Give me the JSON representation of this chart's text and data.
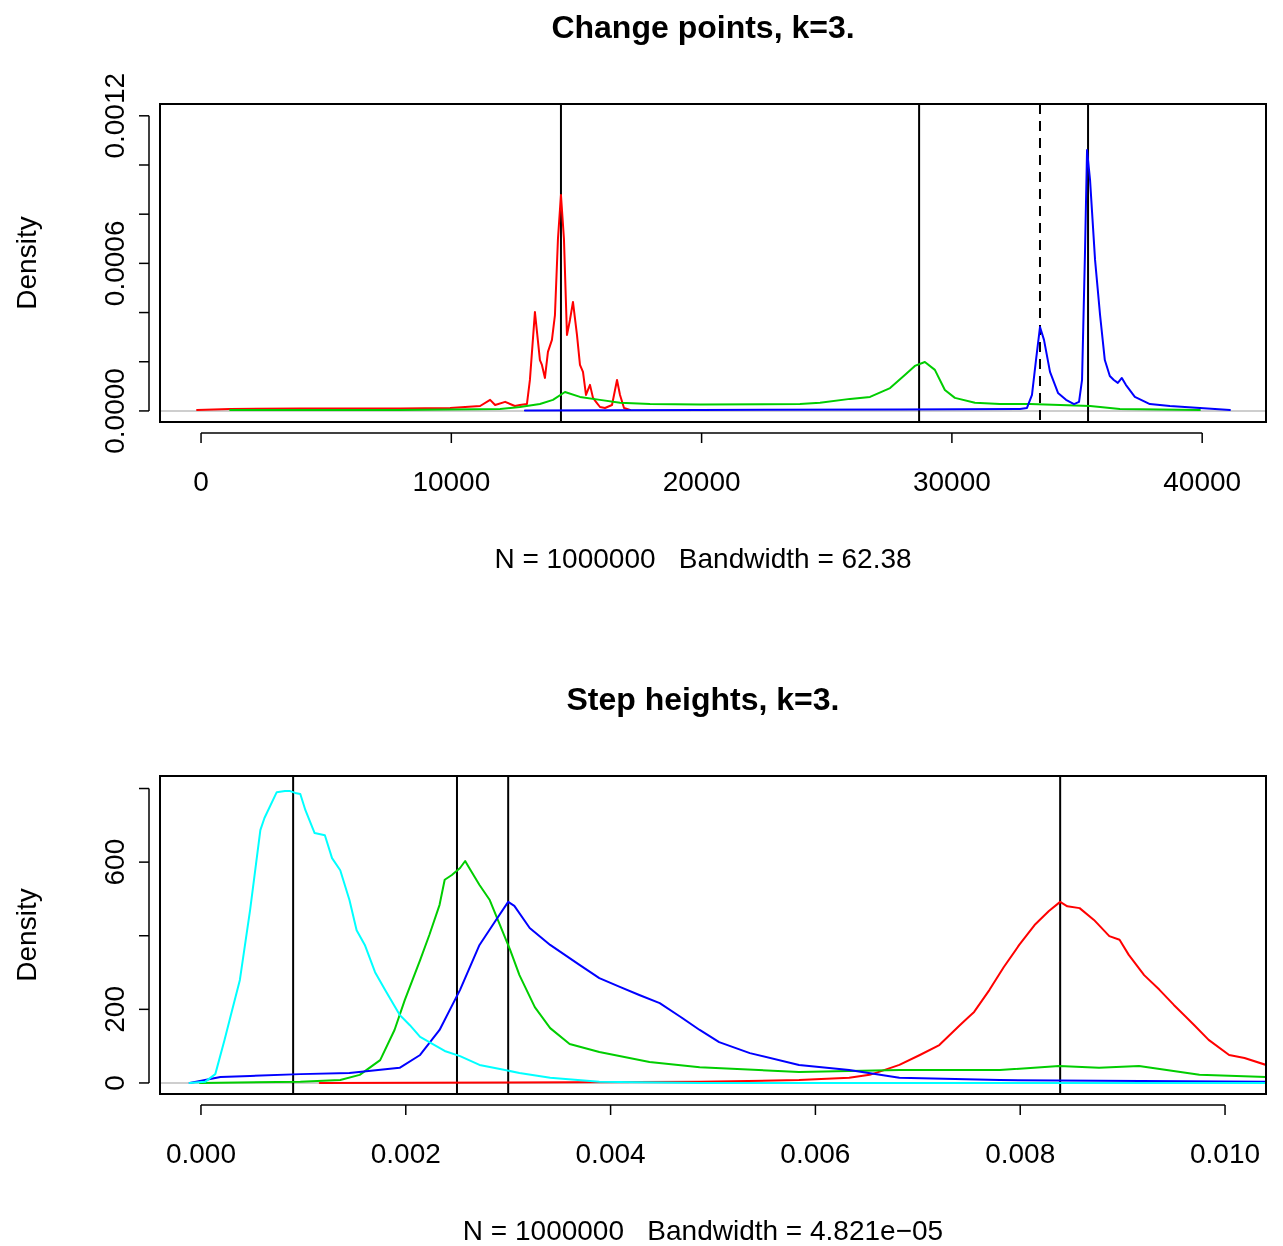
{
  "chart_data": [
    {
      "type": "line",
      "title": "Change points, k=3.",
      "xlabel": "N = 1000000   Bandwidth = 62.38",
      "ylabel": "Density",
      "xlim": [
        -1640,
        42550
      ],
      "ylim": [
        -4.5e-05,
        0.001248
      ],
      "xticks": [
        0,
        10000,
        20000,
        30000,
        40000
      ],
      "yticks": [
        {
          "value": 0,
          "label": "0.0000"
        },
        {
          "value": 0.0002,
          "label": null
        },
        {
          "value": 0.0004,
          "label": null
        },
        {
          "value": 0.0006,
          "label": "0.0006"
        },
        {
          "value": 0.0008,
          "label": null
        },
        {
          "value": 0.001,
          "label": null
        },
        {
          "value": 0.0012,
          "label": "0.0012"
        }
      ],
      "grid": false,
      "line_style": "solid",
      "marker": "none",
      "ref_lines": [
        {
          "axis": "y",
          "value": 0,
          "label": null,
          "color": "#bebebe",
          "line_style": "solid"
        },
        {
          "axis": "x",
          "value": 14380,
          "label": null,
          "color": "#000000",
          "line_style": "solid"
        },
        {
          "axis": "x",
          "value": 28690,
          "label": null,
          "color": "#000000",
          "line_style": "solid"
        },
        {
          "axis": "x",
          "value": 33520,
          "label": null,
          "color": "#000000",
          "line_style": "dashed"
        },
        {
          "axis": "x",
          "value": 35440,
          "label": null,
          "color": "#000000",
          "line_style": "solid"
        }
      ],
      "series": [
        {
          "color": "#ff0000",
          "x": [
            -160,
            1160,
            3960,
            7950,
            9950,
            11150,
            11550,
            11750,
            12150,
            12540,
            12740,
            13020,
            13140,
            13340,
            13540,
            13620,
            13740,
            13860,
            14020,
            14140,
            14260,
            14380,
            14500,
            14620,
            14740,
            14860,
            15020,
            15140,
            15260,
            15380,
            15540,
            15660,
            15780,
            15940,
            16140,
            16420,
            16620,
            16740,
            16900,
            17140
          ],
          "values": [
            4e-06,
            8e-06,
            1e-05,
            1e-05,
            1.2e-05,
            2e-05,
            4.5e-05,
            2.4e-05,
            3.7e-05,
            2e-05,
            2.4e-05,
            2.8e-05,
            0.000126,
            0.000402,
            0.000207,
            0.000187,
            0.000134,
            0.00024,
            0.000289,
            0.00039,
            0.000699,
            0.000878,
            0.000699,
            0.000309,
            0.00037,
            0.000443,
            0.000309,
            0.000187,
            0.000159,
            6.5e-05,
            0.000106,
            5.3e-05,
            3.7e-05,
            1.6e-05,
            1.2e-05,
            2.4e-05,
            0.000126,
            6.5e-05,
            1.2e-05,
            4e-06
          ]
        },
        {
          "color": "#00cd00",
          "x": [
            1160,
            7950,
            11950,
            12740,
            13540,
            14060,
            14540,
            15140,
            15940,
            16740,
            17940,
            19940,
            23930,
            24730,
            25930,
            26730,
            27530,
            28120,
            28520,
            28920,
            29320,
            29720,
            30120,
            30920,
            31920,
            33120,
            34320,
            35520,
            35920,
            36710,
            39910
          ],
          "values": [
            4e-06,
            4e-06,
            8e-06,
            1.6e-05,
            2.8e-05,
            4.5e-05,
            7.7e-05,
            5.7e-05,
            4.5e-05,
            3.3e-05,
            2.8e-05,
            2.6e-05,
            2.8e-05,
            3.3e-05,
            4.9e-05,
            5.7e-05,
            9.3e-05,
            0.000146,
            0.000183,
            0.000199,
            0.000167,
            8.5e-05,
            5.3e-05,
            3.3e-05,
            2.8e-05,
            2.8e-05,
            2.4e-05,
            2e-05,
            1.6e-05,
            8e-06,
            4e-06
          ]
        },
        {
          "color": "#0000ff",
          "x": [
            12940,
            19940,
            27930,
            32720,
            33000,
            33200,
            33360,
            33520,
            33680,
            33920,
            34240,
            34560,
            34880,
            35080,
            35200,
            35320,
            35400,
            35520,
            35720,
            35920,
            36110,
            36310,
            36470,
            36630,
            36790,
            36950,
            37310,
            37910,
            38710,
            39910,
            41110
          ],
          "values": [
            2e-06,
            4e-06,
            6e-06,
            8e-06,
            1.2e-05,
            6.5e-05,
            0.000207,
            0.000341,
            0.000289,
            0.000159,
            7.3e-05,
            4.5e-05,
            2.8e-05,
            3.7e-05,
            0.000126,
            0.000654,
            0.001061,
            0.000939,
            0.000614,
            0.00039,
            0.000207,
            0.000142,
            0.000126,
            0.000114,
            0.000134,
            0.000106,
            5.7e-05,
            2.8e-05,
            2e-05,
            1.2e-05,
            4e-06
          ]
        }
      ]
    },
    {
      "type": "line",
      "title": "Step heights, k=3.",
      "xlabel": "N = 1000000   Bandwidth = 4.821e−05",
      "ylabel": "Density",
      "xlim": [
        -0.0004,
        0.0104
      ],
      "ylim": [
        -30,
        834
      ],
      "xticks": [
        {
          "value": 0,
          "label": "0.000"
        },
        {
          "value": 0.002,
          "label": "0.002"
        },
        {
          "value": 0.004,
          "label": "0.004"
        },
        {
          "value": 0.006,
          "label": "0.006"
        },
        {
          "value": 0.008,
          "label": "0.008"
        },
        {
          "value": 0.01,
          "label": "0.010"
        }
      ],
      "yticks": [
        0,
        200,
        {
          "value": 400,
          "label": null
        },
        600,
        {
          "value": 800,
          "label": null
        }
      ],
      "grid": false,
      "line_style": "solid",
      "marker": "none",
      "ref_lines": [
        {
          "axis": "y",
          "value": 0,
          "label": null,
          "color": "#bebebe",
          "line_style": "solid"
        },
        {
          "axis": "x",
          "value": 0.0009,
          "label": null,
          "color": "#000000",
          "line_style": "solid"
        },
        {
          "axis": "x",
          "value": 0.0025,
          "label": null,
          "color": "#000000",
          "line_style": "solid"
        },
        {
          "axis": "x",
          "value": 0.003,
          "label": null,
          "color": "#000000",
          "line_style": "solid"
        },
        {
          "axis": "x",
          "value": 0.00839,
          "label": null,
          "color": "#000000",
          "line_style": "solid"
        }
      ],
      "series": [
        {
          "color": "#ff0000",
          "x": [
            0.00116,
            0.00487,
            0.00584,
            0.00633,
            0.00653,
            0.00662,
            0.00682,
            0.00702,
            0.00721,
            0.00741,
            0.00755,
            0.0077,
            0.00784,
            0.00799,
            0.00814,
            0.00828,
            0.00839,
            0.00846,
            0.00858,
            0.00872,
            0.00887,
            0.00897,
            0.00906,
            0.00921,
            0.00936,
            0.0095,
            0.0097,
            0.00984,
            0.01004,
            0.01019,
            0.0104
          ],
          "values": [
            0,
            3,
            8,
            14,
            22,
            30,
            49,
            76,
            103,
            157,
            193,
            253,
            315,
            375,
            429,
            467,
            492,
            480,
            475,
            443,
            399,
            389,
            348,
            293,
            253,
            212,
            157,
            117,
            76,
            68,
            49
          ]
        },
        {
          "color": "#00cd00",
          "x": [
            -1e-05,
            0.00097,
            0.00136,
            0.00155,
            0.00175,
            0.00189,
            0.00199,
            0.00214,
            0.00223,
            0.00233,
            0.00238,
            0.00245,
            0.00253,
            0.00258,
            0.00262,
            0.00272,
            0.00282,
            0.00292,
            0.00302,
            0.00311,
            0.00326,
            0.00341,
            0.0036,
            0.00389,
            0.00438,
            0.00487,
            0.00584,
            0.00682,
            0.0078,
            0.00838,
            0.00877,
            0.00916,
            0.00975,
            0.0104
          ],
          "values": [
            0,
            3,
            8,
            22,
            62,
            144,
            225,
            334,
            402,
            484,
            552,
            565,
            584,
            603,
            584,
            538,
            497,
            429,
            361,
            293,
            206,
            149,
            106,
            84,
            57,
            43,
            30,
            35,
            35,
            46,
            41,
            46,
            22,
            16
          ]
        },
        {
          "color": "#0000ff",
          "x": [
            -0.00011,
            0.00019,
            0.00048,
            0.00097,
            0.00145,
            0.00194,
            0.00214,
            0.00233,
            0.00253,
            0.00272,
            0.00287,
            0.003,
            0.00306,
            0.00321,
            0.00341,
            0.0037,
            0.00389,
            0.00409,
            0.00428,
            0.00448,
            0.00467,
            0.00487,
            0.00506,
            0.00536,
            0.00584,
            0.00633,
            0.00682,
            0.0078,
            0.0104
          ],
          "values": [
            0,
            16,
            19,
            24,
            27,
            41,
            76,
            144,
            253,
            375,
            438,
            492,
            481,
            421,
            375,
            320,
            285,
            261,
            239,
            217,
            182,
            144,
            111,
            81,
            49,
            35,
            14,
            8,
            3
          ]
        },
        {
          "color": "#00ffff",
          "x": [
            -0.00011,
            4e-05,
            0.00014,
            0.00023,
            0.00038,
            0.00048,
            0.00058,
            0.00062,
            0.00074,
            0.00082,
            0.00087,
            0.00092,
            0.00097,
            0.00102,
            0.00111,
            0.00121,
            0.00128,
            0.00136,
            0.00145,
            0.00152,
            0.0016,
            0.0017,
            0.0018,
            0.00194,
            0.00204,
            0.00214,
            0.00223,
            0.00238,
            0.00253,
            0.00272,
            0.00292,
            0.00311,
            0.00341,
            0.00389,
            0.00487,
            0.0104
          ],
          "values": [
            0,
            3,
            24,
            117,
            280,
            470,
            687,
            720,
            790,
            793,
            793,
            788,
            785,
            741,
            679,
            673,
            611,
            578,
            497,
            415,
            375,
            301,
            252,
            185,
            157,
            125,
            111,
            87,
            73,
            49,
            38,
            27,
            14,
            3,
            0,
            0
          ]
        }
      ]
    }
  ]
}
